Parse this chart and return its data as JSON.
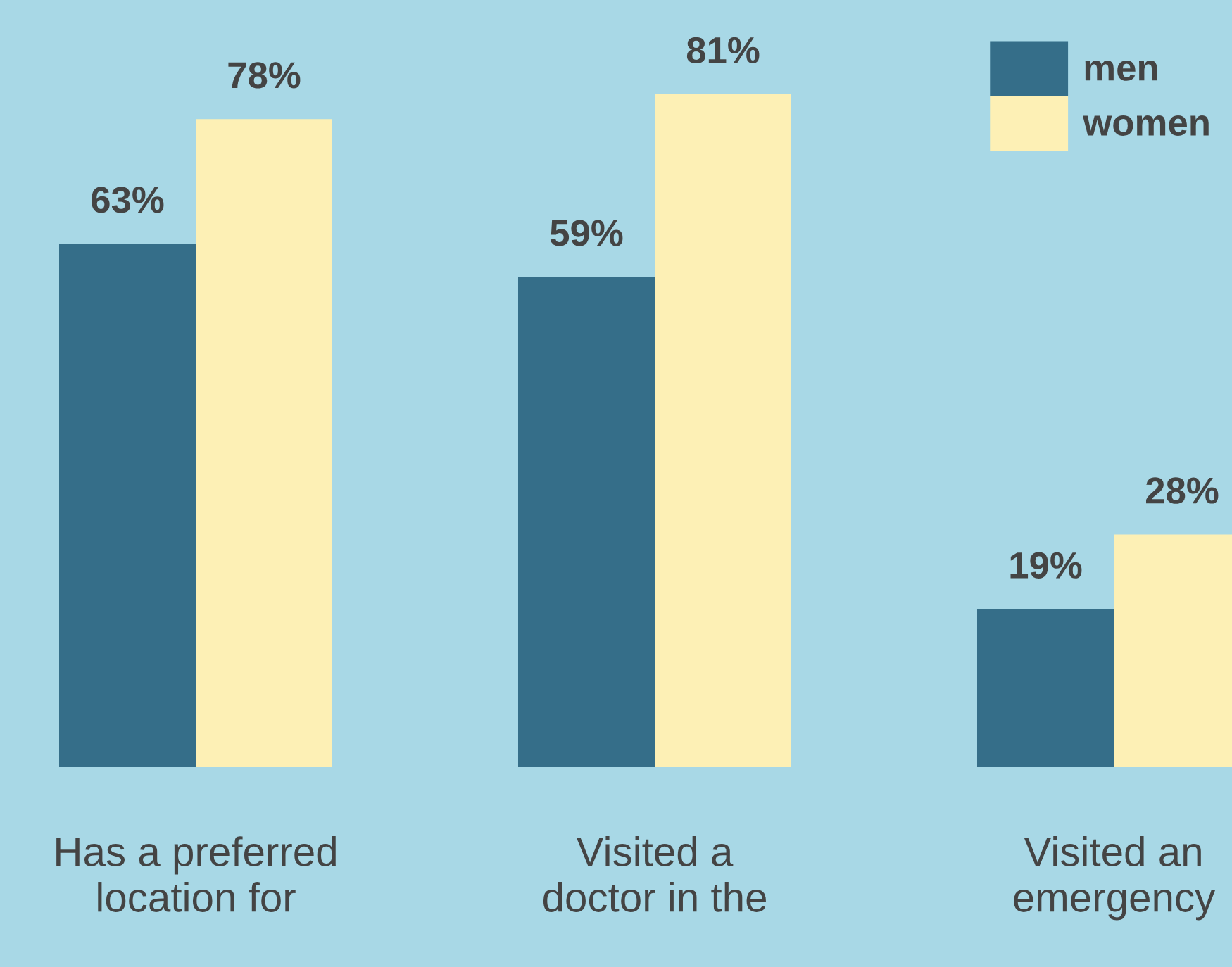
{
  "chart_data": {
    "type": "bar",
    "categories": [
      "Has a preferred\nlocation for",
      "Visited a\ndoctor in the",
      "Visited an\nemergency"
    ],
    "series": [
      {
        "name": "men",
        "color": "#356e89",
        "values": [
          63,
          59,
          19
        ],
        "value_labels": [
          "63%",
          "59%",
          "19%"
        ]
      },
      {
        "name": "women",
        "color": "#fdf0b5",
        "values": [
          78,
          81,
          28
        ],
        "value_labels": [
          "78%",
          "81%",
          "28%"
        ]
      }
    ],
    "legend": "top right"
  }
}
